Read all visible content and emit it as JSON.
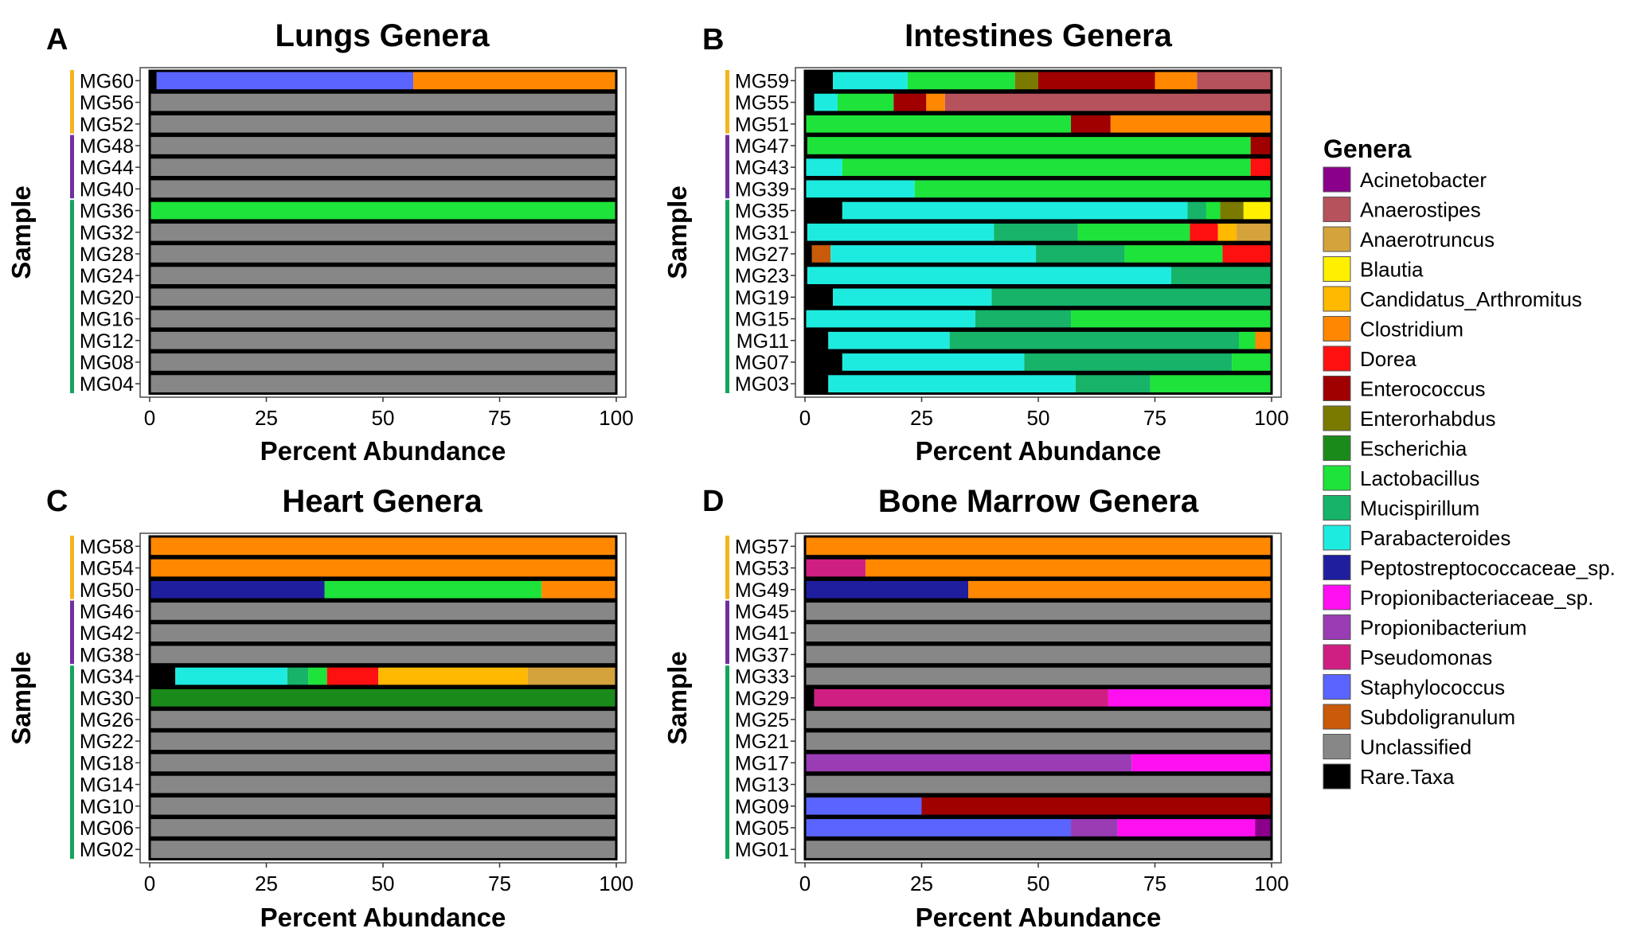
{
  "legend": {
    "title": "Genera",
    "items": [
      {
        "name": "Acinetobacter",
        "color": "#8B008B"
      },
      {
        "name": "Anaerostipes",
        "color": "#B5525C"
      },
      {
        "name": "Anaerotruncus",
        "color": "#D4A33C"
      },
      {
        "name": "Blautia",
        "color": "#FFF000"
      },
      {
        "name": "Candidatus_Arthromitus",
        "color": "#FFB900"
      },
      {
        "name": "Clostridium",
        "color": "#FF8800"
      },
      {
        "name": "Dorea",
        "color": "#FF1010"
      },
      {
        "name": "Enterococcus",
        "color": "#A00000"
      },
      {
        "name": "Enterorhabdus",
        "color": "#7A7A00"
      },
      {
        "name": "Escherichia",
        "color": "#1A8A1A"
      },
      {
        "name": "Lactobacillus",
        "color": "#1EE33A"
      },
      {
        "name": "Mucispirillum",
        "color": "#16B368"
      },
      {
        "name": "Parabacteroides",
        "color": "#1EEBE0"
      },
      {
        "name": "Peptostreptococcaceae_sp.",
        "color": "#1E1E9E"
      },
      {
        "name": "Propionibacteriaceae_sp.",
        "color": "#FF10F0"
      },
      {
        "name": "Propionibacterium",
        "color": "#9A3CB4"
      },
      {
        "name": "Pseudomonas",
        "color": "#D01F82"
      },
      {
        "name": "Staphylococcus",
        "color": "#5A64FF"
      },
      {
        "name": "Subdoligranulum",
        "color": "#C85A0A"
      },
      {
        "name": "Unclassified",
        "color": "#878787"
      },
      {
        "name": "Rare.Taxa",
        "color": "#000000"
      }
    ]
  },
  "chart_data": [
    {
      "panel": "A",
      "type": "bar",
      "orientation": "horizontal-stacked",
      "title": "Lungs Genera",
      "xlabel": "Percent Abundance",
      "ylabel": "Sample",
      "xlim": [
        0,
        100
      ],
      "xticks": [
        "0",
        "25",
        "50",
        "75",
        "100"
      ],
      "groups": [
        {
          "color": "#F4B41E",
          "count": 3
        },
        {
          "color": "#7030A0",
          "count": 3
        },
        {
          "color": "#13A55B",
          "count": 9
        }
      ],
      "samples": [
        {
          "name": "MG60",
          "segments": [
            [
              "Rare.Taxa",
              1.5
            ],
            [
              "Staphylococcus",
              55
            ],
            [
              "Clostridium",
              43.5
            ]
          ]
        },
        {
          "name": "MG56",
          "segments": [
            [
              "Unclassified",
              100
            ]
          ]
        },
        {
          "name": "MG52",
          "segments": [
            [
              "Unclassified",
              100
            ]
          ]
        },
        {
          "name": "MG48",
          "segments": [
            [
              "Unclassified",
              100
            ]
          ]
        },
        {
          "name": "MG44",
          "segments": [
            [
              "Unclassified",
              100
            ]
          ]
        },
        {
          "name": "MG40",
          "segments": [
            [
              "Unclassified",
              100
            ]
          ]
        },
        {
          "name": "MG36",
          "segments": [
            [
              "Lactobacillus",
              100
            ]
          ]
        },
        {
          "name": "MG32",
          "segments": [
            [
              "Unclassified",
              100
            ]
          ]
        },
        {
          "name": "MG28",
          "segments": [
            [
              "Unclassified",
              100
            ]
          ]
        },
        {
          "name": "MG24",
          "segments": [
            [
              "Unclassified",
              100
            ]
          ]
        },
        {
          "name": "MG20",
          "segments": [
            [
              "Unclassified",
              100
            ]
          ]
        },
        {
          "name": "MG16",
          "segments": [
            [
              "Unclassified",
              100
            ]
          ]
        },
        {
          "name": "MG12",
          "segments": [
            [
              "Unclassified",
              100
            ]
          ]
        },
        {
          "name": "MG08",
          "segments": [
            [
              "Unclassified",
              100
            ]
          ]
        },
        {
          "name": "MG04",
          "segments": [
            [
              "Unclassified",
              100
            ]
          ]
        }
      ]
    },
    {
      "panel": "B",
      "type": "bar",
      "orientation": "horizontal-stacked",
      "title": "Intestines Genera",
      "xlabel": "Percent Abundance",
      "ylabel": "Sample",
      "xlim": [
        0,
        100
      ],
      "xticks": [
        "0",
        "25",
        "50",
        "75",
        "100"
      ],
      "groups": [
        {
          "color": "#F4B41E",
          "count": 3
        },
        {
          "color": "#7030A0",
          "count": 3
        },
        {
          "color": "#13A55B",
          "count": 9
        }
      ],
      "samples": [
        {
          "name": "MG59",
          "segments": [
            [
              "Rare.Taxa",
              6
            ],
            [
              "Parabacteroides",
              16
            ],
            [
              "Lactobacillus",
              23
            ],
            [
              "Enterorhabdus",
              5
            ],
            [
              "Enterococcus",
              25
            ],
            [
              "Clostridium",
              9
            ],
            [
              "Anaerostipes",
              16
            ]
          ]
        },
        {
          "name": "MG55",
          "segments": [
            [
              "Rare.Taxa",
              2
            ],
            [
              "Parabacteroides",
              5
            ],
            [
              "Lactobacillus",
              12
            ],
            [
              "Enterococcus",
              7
            ],
            [
              "Clostridium",
              4
            ],
            [
              "Anaerostipes",
              70
            ]
          ]
        },
        {
          "name": "MG51",
          "segments": [
            [
              "Lactobacillus",
              57
            ],
            [
              "Enterococcus",
              8.5
            ],
            [
              "Clostridium",
              34.5
            ]
          ]
        },
        {
          "name": "MG47",
          "segments": [
            [
              "Rare.Taxa",
              0.5
            ],
            [
              "Lactobacillus",
              95
            ],
            [
              "Enterococcus",
              4.5
            ]
          ]
        },
        {
          "name": "MG43",
          "segments": [
            [
              "Parabacteroides",
              8
            ],
            [
              "Lactobacillus",
              87.5
            ],
            [
              "Dorea",
              4.5
            ]
          ]
        },
        {
          "name": "MG39",
          "segments": [
            [
              "Parabacteroides",
              23.5
            ],
            [
              "Lactobacillus",
              76.5
            ]
          ]
        },
        {
          "name": "MG35",
          "segments": [
            [
              "Rare.Taxa",
              8
            ],
            [
              "Parabacteroides",
              74
            ],
            [
              "Mucispirillum",
              4
            ],
            [
              "Lactobacillus",
              3
            ],
            [
              "Enterorhabdus",
              5
            ],
            [
              "Blautia",
              6
            ]
          ]
        },
        {
          "name": "MG31",
          "segments": [
            [
              "Rare.Taxa",
              0.5
            ],
            [
              "Parabacteroides",
              40
            ],
            [
              "Mucispirillum",
              18
            ],
            [
              "Lactobacillus",
              24
            ],
            [
              "Dorea",
              6
            ],
            [
              "Candidatus_Arthromitus",
              4
            ],
            [
              "Anaerotruncus",
              7.5
            ]
          ]
        },
        {
          "name": "MG27",
          "segments": [
            [
              "Rare.Taxa",
              1.5
            ],
            [
              "Subdoligranulum",
              4
            ],
            [
              "Parabacteroides",
              44
            ],
            [
              "Mucispirillum",
              19
            ],
            [
              "Lactobacillus",
              21
            ],
            [
              "Dorea",
              10.5
            ]
          ]
        },
        {
          "name": "MG23",
          "segments": [
            [
              "Rare.Taxa",
              0.5
            ],
            [
              "Parabacteroides",
              78
            ],
            [
              "Mucispirillum",
              21.5
            ]
          ]
        },
        {
          "name": "MG19",
          "segments": [
            [
              "Rare.Taxa",
              6
            ],
            [
              "Parabacteroides",
              34
            ],
            [
              "Mucispirillum",
              60
            ]
          ]
        },
        {
          "name": "MG15",
          "segments": [
            [
              "Parabacteroides",
              36.5
            ],
            [
              "Mucispirillum",
              20.5
            ],
            [
              "Lactobacillus",
              43
            ]
          ]
        },
        {
          "name": "MG11",
          "segments": [
            [
              "Rare.Taxa",
              5
            ],
            [
              "Parabacteroides",
              26
            ],
            [
              "Mucispirillum",
              62
            ],
            [
              "Lactobacillus",
              3.5
            ],
            [
              "Clostridium",
              3.5
            ]
          ]
        },
        {
          "name": "MG07",
          "segments": [
            [
              "Rare.Taxa",
              8
            ],
            [
              "Parabacteroides",
              39
            ],
            [
              "Mucispirillum",
              44.5
            ],
            [
              "Lactobacillus",
              8.5
            ]
          ]
        },
        {
          "name": "MG03",
          "segments": [
            [
              "Rare.Taxa",
              5
            ],
            [
              "Parabacteroides",
              53
            ],
            [
              "Mucispirillum",
              16
            ],
            [
              "Lactobacillus",
              26
            ]
          ]
        }
      ]
    },
    {
      "panel": "C",
      "type": "bar",
      "orientation": "horizontal-stacked",
      "title": "Heart Genera",
      "xlabel": "Percent Abundance",
      "ylabel": "Sample",
      "xlim": [
        0,
        100
      ],
      "xticks": [
        "0",
        "25",
        "50",
        "75",
        "100"
      ],
      "groups": [
        {
          "color": "#F4B41E",
          "count": 3
        },
        {
          "color": "#7030A0",
          "count": 3
        },
        {
          "color": "#13A55B",
          "count": 9
        }
      ],
      "samples": [
        {
          "name": "MG58",
          "segments": [
            [
              "Clostridium",
              100
            ]
          ]
        },
        {
          "name": "MG54",
          "segments": [
            [
              "Clostridium",
              100
            ]
          ]
        },
        {
          "name": "MG50",
          "segments": [
            [
              "Peptostreptococcaceae_sp.",
              37.5
            ],
            [
              "Lactobacillus",
              46.5
            ],
            [
              "Clostridium",
              16
            ]
          ]
        },
        {
          "name": "MG46",
          "segments": [
            [
              "Unclassified",
              100
            ]
          ]
        },
        {
          "name": "MG42",
          "segments": [
            [
              "Unclassified",
              100
            ]
          ]
        },
        {
          "name": "MG38",
          "segments": [
            [
              "Unclassified",
              100
            ]
          ]
        },
        {
          "name": "MG34",
          "segments": [
            [
              "Rare.Taxa",
              5.5
            ],
            [
              "Parabacteroides",
              24
            ],
            [
              "Mucispirillum",
              4.5
            ],
            [
              "Lactobacillus",
              4
            ],
            [
              "Dorea",
              11
            ],
            [
              "Candidatus_Arthromitus",
              32
            ],
            [
              "Anaerotruncus",
              19
            ]
          ]
        },
        {
          "name": "MG30",
          "segments": [
            [
              "Escherichia",
              100
            ]
          ]
        },
        {
          "name": "MG26",
          "segments": [
            [
              "Unclassified",
              100
            ]
          ]
        },
        {
          "name": "MG22",
          "segments": [
            [
              "Unclassified",
              100
            ]
          ]
        },
        {
          "name": "MG18",
          "segments": [
            [
              "Unclassified",
              100
            ]
          ]
        },
        {
          "name": "MG14",
          "segments": [
            [
              "Unclassified",
              100
            ]
          ]
        },
        {
          "name": "MG10",
          "segments": [
            [
              "Unclassified",
              100
            ]
          ]
        },
        {
          "name": "MG06",
          "segments": [
            [
              "Unclassified",
              100
            ]
          ]
        },
        {
          "name": "MG02",
          "segments": [
            [
              "Unclassified",
              100
            ]
          ]
        }
      ]
    },
    {
      "panel": "D",
      "type": "bar",
      "orientation": "horizontal-stacked",
      "title": "Bone Marrow Genera",
      "xlabel": "Percent Abundance",
      "ylabel": "Sample",
      "xlim": [
        0,
        100
      ],
      "xticks": [
        "0",
        "25",
        "50",
        "75",
        "100"
      ],
      "groups": [
        {
          "color": "#F4B41E",
          "count": 3
        },
        {
          "color": "#7030A0",
          "count": 3
        },
        {
          "color": "#13A55B",
          "count": 9
        }
      ],
      "samples": [
        {
          "name": "MG57",
          "segments": [
            [
              "Clostridium",
              100
            ]
          ]
        },
        {
          "name": "MG53",
          "segments": [
            [
              "Pseudomonas",
              13
            ],
            [
              "Clostridium",
              87
            ]
          ]
        },
        {
          "name": "MG49",
          "segments": [
            [
              "Peptostreptococcaceae_sp.",
              35
            ],
            [
              "Clostridium",
              65
            ]
          ]
        },
        {
          "name": "MG45",
          "segments": [
            [
              "Unclassified",
              100
            ]
          ]
        },
        {
          "name": "MG41",
          "segments": [
            [
              "Unclassified",
              100
            ]
          ]
        },
        {
          "name": "MG37",
          "segments": [
            [
              "Unclassified",
              100
            ]
          ]
        },
        {
          "name": "MG33",
          "segments": [
            [
              "Unclassified",
              100
            ]
          ]
        },
        {
          "name": "MG29",
          "segments": [
            [
              "Rare.Taxa",
              2
            ],
            [
              "Pseudomonas",
              63
            ],
            [
              "Propionibacteriaceae_sp.",
              35
            ]
          ]
        },
        {
          "name": "MG25",
          "segments": [
            [
              "Unclassified",
              100
            ]
          ]
        },
        {
          "name": "MG21",
          "segments": [
            [
              "Unclassified",
              100
            ]
          ]
        },
        {
          "name": "MG17",
          "segments": [
            [
              "Propionibacterium",
              70
            ],
            [
              "Propionibacteriaceae_sp.",
              30
            ]
          ]
        },
        {
          "name": "MG13",
          "segments": [
            [
              "Unclassified",
              100
            ]
          ]
        },
        {
          "name": "MG09",
          "segments": [
            [
              "Staphylococcus",
              25
            ],
            [
              "Enterococcus",
              75
            ]
          ]
        },
        {
          "name": "MG05",
          "segments": [
            [
              "Staphylococcus",
              57
            ],
            [
              "Propionibacterium",
              10
            ],
            [
              "Propionibacteriaceae_sp.",
              29.5
            ],
            [
              "Acinetobacter",
              3.5
            ]
          ]
        },
        {
          "name": "MG01",
          "segments": [
            [
              "Unclassified",
              100
            ]
          ]
        }
      ]
    }
  ]
}
